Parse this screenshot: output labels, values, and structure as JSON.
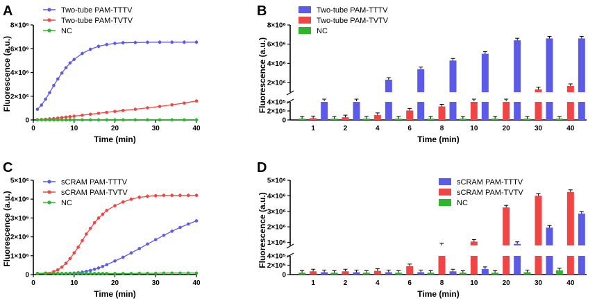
{
  "colors": {
    "blue": "#5b5be8",
    "red": "#f04545",
    "green": "#2db52d"
  },
  "chart_data": [
    {
      "panel": "A",
      "type": "line",
      "xlabel": "Time (min)",
      "ylabel": "Fluorescence (a.u.)",
      "xlim": [
        0,
        40
      ],
      "ylim": [
        0,
        8000000
      ],
      "xticks": [
        "0",
        "10",
        "20",
        "30",
        "40"
      ],
      "yticks": [
        "0",
        "2×10⁶",
        "4×10⁶",
        "6×10⁶",
        "8×10⁶"
      ],
      "grid": false,
      "legend_position": "top-left",
      "x": [
        1,
        2,
        3,
        4,
        5,
        6,
        7,
        8,
        9,
        10,
        12,
        14,
        16,
        18,
        20,
        22,
        25,
        28,
        31,
        34,
        37,
        40
      ],
      "series": [
        {
          "name": "Two-tube PAM-TTTV",
          "color": "blue",
          "values": [
            900000,
            1250000,
            1750000,
            2300000,
            2900000,
            3450000,
            3950000,
            4400000,
            4800000,
            5100000,
            5600000,
            5950000,
            6200000,
            6350000,
            6450000,
            6500000,
            6520000,
            6540000,
            6550000,
            6550000,
            6550000,
            6550000
          ]
        },
        {
          "name": "Two-tube PAM-TVTV",
          "color": "red",
          "values": [
            20000,
            40000,
            60000,
            90000,
            120000,
            160000,
            200000,
            240000,
            280000,
            320000,
            400000,
            480000,
            560000,
            640000,
            720000,
            800000,
            900000,
            1020000,
            1140000,
            1280000,
            1420000,
            1600000
          ]
        },
        {
          "name": "NC",
          "color": "green",
          "values": [
            10000,
            10000,
            10000,
            10000,
            10000,
            10000,
            10000,
            10000,
            10000,
            10000,
            10000,
            10000,
            10000,
            10000,
            10000,
            10000,
            10000,
            10000,
            10000,
            10000,
            10000,
            10000
          ]
        }
      ]
    },
    {
      "panel": "B",
      "type": "bar",
      "xlabel": "Time (min)",
      "ylabel": "Fluorescence (a.u.)",
      "categories": [
        "1",
        "2",
        "4",
        "6",
        "8",
        "10",
        "20",
        "30",
        "40"
      ],
      "y_axis_break": {
        "lower": [
          0,
          400000
        ],
        "upper": [
          1000000,
          8000000
        ]
      },
      "yticks_lower": [
        "0",
        "2×10⁵",
        "4×10⁵"
      ],
      "yticks_upper": [
        "2×10⁶",
        "4×10⁶",
        "6×10⁶",
        "8×10⁶"
      ],
      "legend_position": "top-left",
      "series_order": [
        "green",
        "red",
        "blue"
      ],
      "series": [
        {
          "name": "Two-tube PAM-TTTV",
          "color": "blue",
          "values": [
            950000,
            950000,
            2300000,
            3400000,
            4300000,
            5000000,
            6400000,
            6600000,
            6600000
          ]
        },
        {
          "name": "Two-tube PAM-TVTV",
          "color": "red",
          "values": [
            40000,
            60000,
            110000,
            210000,
            300000,
            500000,
            900000,
            1300000,
            1650000
          ]
        },
        {
          "name": "NC",
          "color": "green",
          "values": [
            30000,
            30000,
            30000,
            30000,
            30000,
            30000,
            30000,
            30000,
            30000
          ]
        }
      ]
    },
    {
      "panel": "C",
      "type": "line",
      "xlabel": "Time (min)",
      "ylabel": "Fluorescence (a.u.)",
      "xlim": [
        0,
        40
      ],
      "ylim": [
        0,
        5000000
      ],
      "xticks": [
        "0",
        "10",
        "20",
        "30",
        "40"
      ],
      "yticks": [
        "0",
        "1×10⁶",
        "2×10⁶",
        "3×10⁶",
        "4×10⁶",
        "5×10⁶"
      ],
      "grid": false,
      "legend_position": "top-left",
      "x": [
        1,
        3,
        5,
        6,
        7,
        8,
        9,
        10,
        11,
        12,
        13,
        14,
        15,
        16,
        17,
        18,
        20,
        22,
        24,
        26,
        28,
        30,
        32,
        34,
        36,
        38,
        40
      ],
      "series": [
        {
          "name": "sCRAM PAM-TTTV",
          "color": "blue",
          "values": [
            60000,
            60000,
            60000,
            60000,
            60000,
            60000,
            70000,
            80000,
            100000,
            130000,
            170000,
            220000,
            280000,
            350000,
            430000,
            520000,
            720000,
            920000,
            1150000,
            1380000,
            1620000,
            1850000,
            2080000,
            2300000,
            2500000,
            2680000,
            2850000
          ]
        },
        {
          "name": "sCRAM PAM-TVTV",
          "color": "red",
          "values": [
            60000,
            80000,
            150000,
            250000,
            400000,
            600000,
            850000,
            1150000,
            1450000,
            1800000,
            2150000,
            2450000,
            2750000,
            3000000,
            3200000,
            3400000,
            3650000,
            3850000,
            4000000,
            4100000,
            4150000,
            4180000,
            4200000,
            4200000,
            4200000,
            4200000,
            4200000
          ]
        },
        {
          "name": "NC",
          "color": "green",
          "values": [
            60000,
            60000,
            60000,
            60000,
            60000,
            60000,
            60000,
            60000,
            60000,
            60000,
            60000,
            60000,
            60000,
            60000,
            60000,
            60000,
            60000,
            60000,
            60000,
            70000,
            70000,
            70000,
            80000,
            80000,
            80000,
            80000,
            80000
          ]
        }
      ]
    },
    {
      "panel": "D",
      "type": "bar",
      "xlabel": "Time (min)",
      "ylabel": "Fluorescence (a.u.)",
      "categories": [
        "1",
        "2",
        "4",
        "6",
        "8",
        "10",
        "20",
        "30",
        "40"
      ],
      "y_axis_break": {
        "lower": [
          0,
          400000
        ],
        "upper": [
          800000,
          5000000
        ]
      },
      "yticks_lower": [
        "0",
        "2×10⁵",
        "4×10⁵"
      ],
      "yticks_upper": [
        "1×10⁶",
        "2×10⁶",
        "3×10⁶",
        "4×10⁶",
        "5×10⁶"
      ],
      "legend_position": "top-right",
      "series_order": [
        "green",
        "red",
        "blue"
      ],
      "series": [
        {
          "name": "sCRAM PAM-TTTV",
          "color": "blue",
          "values": [
            50000,
            50000,
            50000,
            50000,
            70000,
            120000,
            900000,
            1950000,
            2850000
          ]
        },
        {
          "name": "sCRAM PAM-TVTV",
          "color": "red",
          "values": [
            70000,
            70000,
            80000,
            180000,
            800000,
            1050000,
            3250000,
            4000000,
            4250000
          ]
        },
        {
          "name": "NC",
          "color": "green",
          "values": [
            40000,
            40000,
            40000,
            40000,
            40000,
            40000,
            40000,
            50000,
            90000
          ]
        }
      ]
    }
  ],
  "panel_labels": [
    "A",
    "B",
    "C",
    "D"
  ]
}
